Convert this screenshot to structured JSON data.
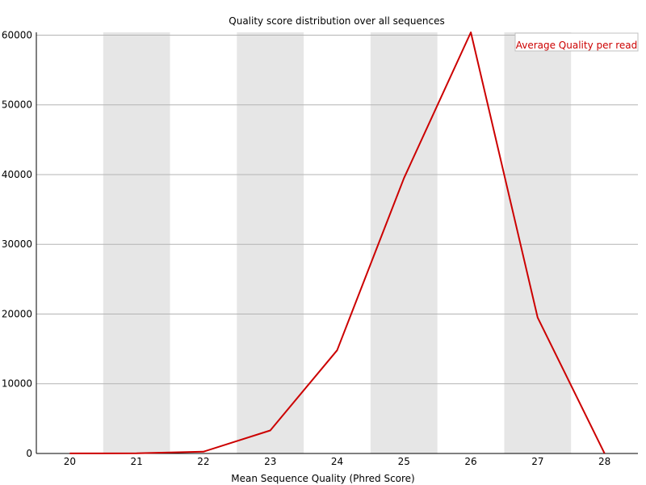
{
  "chart_data": {
    "type": "line",
    "title": "Quality score distribution over all sequences",
    "xlabel": "Mean Sequence Quality (Phred Score)",
    "ylabel": "",
    "x": [
      20,
      21,
      22,
      23,
      24,
      25,
      26,
      27,
      28
    ],
    "series": [
      {
        "name": "Average Quality per read",
        "values": [
          10,
          25,
          250,
          3300,
          14800,
          39500,
          60400,
          19500,
          20
        ]
      }
    ],
    "xlim": [
      19.5,
      28.5
    ],
    "ylim": [
      0,
      60400
    ],
    "yticks": [
      0,
      10000,
      20000,
      30000,
      40000,
      50000,
      60000
    ],
    "xticks": [
      20,
      21,
      22,
      23,
      24,
      25,
      26,
      27,
      28
    ],
    "grid": true,
    "alternating_bands": true,
    "legend_position": "top-right",
    "colors": {
      "line": "#cc0000",
      "band": "#e6e6e6",
      "grid": "#b4b4b4",
      "axis": "#000000"
    }
  }
}
